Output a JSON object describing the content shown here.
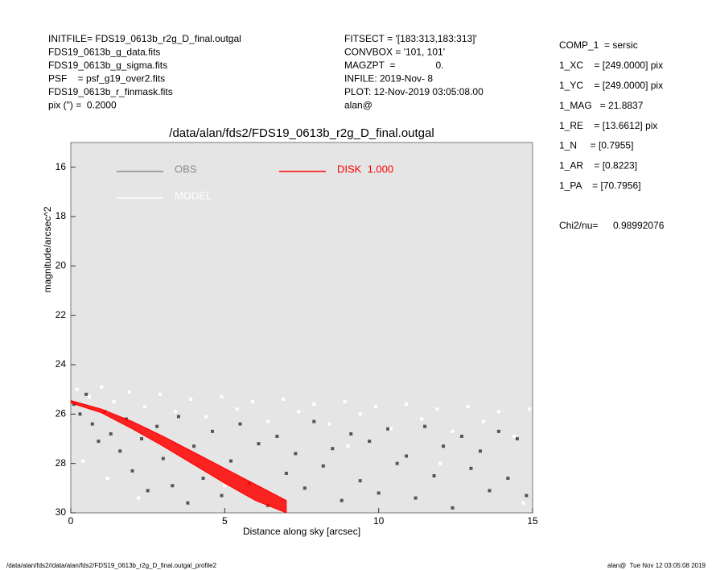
{
  "header": {
    "left": [
      "INITFILE= FDS19_0613b_r2g_D_final.outgal",
      "FDS19_0613b_g_data.fits",
      "FDS19_0613b_g_sigma.fits",
      "PSF    = psf_g19_over2.fits",
      "FDS19_0613b_r_finmask.fits",
      "pix (\") =  0.2000"
    ],
    "middle": [
      "FITSECT = '[183:313,183:313]'",
      "CONVBOX = '101, 101'",
      "MAGZPT  =               0.",
      "INFILE: 2019-Nov- 8",
      "PLOT: 12-Nov-2019 03:05:08.00",
      "alan@"
    ],
    "right": [
      "COMP_1  = sersic",
      "1_XC    = [249.0000] pix",
      "1_YC    = [249.0000] pix",
      "1_MAG   = 21.8837",
      "1_RE    = [13.6612] pix",
      "1_N     = [0.7955]",
      "1_AR    = [0.8223]",
      "1_PA    = [70.7956]"
    ],
    "chi2_label": "Chi2/nu=",
    "chi2_value": "0.98992076"
  },
  "footer": {
    "left": "/data/alan/fds2//data/alan/fds2/FDS19_0613b_r2g_D_final.outgal_profile2",
    "right": "alan@  Tue Nov 12 03:05:08 2019"
  },
  "chart_data": {
    "type": "scatter",
    "title": "/data/alan/fds2/FDS19_0613b_r2g_D_final.outgal",
    "xlabel": "Distance along sky [arcsec]",
    "ylabel": "magnitude/arcsec^2",
    "xlim": [
      0,
      15
    ],
    "ylim": [
      30,
      15
    ],
    "xticks": [
      0,
      5,
      10,
      15
    ],
    "yticks": [
      16,
      18,
      20,
      22,
      24,
      26,
      28,
      30
    ],
    "series": [
      {
        "name": "OBS",
        "color": "#555555",
        "x": [
          0.1,
          0.3,
          0.5,
          0.7,
          0.9,
          1.1,
          1.3,
          1.6,
          1.8,
          2.0,
          2.3,
          2.5,
          2.8,
          3.0,
          3.3,
          3.5,
          3.8,
          4.0,
          4.3,
          4.6,
          4.9,
          5.2,
          5.5,
          5.8,
          6.1,
          6.4,
          6.7,
          7.0,
          7.3,
          7.6,
          7.9,
          8.2,
          8.5,
          8.8,
          9.1,
          9.4,
          9.7,
          10.0,
          10.3,
          10.6,
          10.9,
          11.2,
          11.5,
          11.8,
          12.1,
          12.4,
          12.7,
          13.0,
          13.3,
          13.6,
          13.9,
          14.2,
          14.5,
          14.8
        ],
        "values": [
          25.6,
          26.0,
          25.2,
          26.4,
          27.1,
          25.9,
          26.8,
          27.5,
          26.2,
          28.3,
          27.0,
          29.1,
          26.5,
          27.8,
          28.9,
          26.1,
          29.6,
          27.3,
          28.6,
          26.7,
          29.3,
          27.9,
          26.4,
          28.8,
          27.2,
          29.7,
          26.9,
          28.4,
          27.6,
          29.0,
          26.3,
          28.1,
          27.4,
          29.5,
          26.8,
          28.7,
          27.1,
          29.2,
          26.6,
          28.0,
          27.7,
          29.4,
          26.5,
          28.5,
          27.3,
          29.8,
          26.9,
          28.2,
          27.5,
          29.1,
          26.7,
          28.6,
          27.0,
          29.3
        ]
      },
      {
        "name": "MODEL",
        "color": "#ffffff",
        "x": [
          0.2,
          0.6,
          1.0,
          1.4,
          1.9,
          2.4,
          2.9,
          3.4,
          3.9,
          4.4,
          4.9,
          5.4,
          5.9,
          6.4,
          6.9,
          7.4,
          7.9,
          8.4,
          8.9,
          9.4,
          9.9,
          10.4,
          10.9,
          11.4,
          11.9,
          12.4,
          12.9,
          13.4,
          13.9,
          14.4,
          14.9,
          0.4,
          1.2,
          2.2,
          5.0,
          9.0,
          12.0,
          14.7
        ],
        "values": [
          25.0,
          25.3,
          24.9,
          25.5,
          25.1,
          25.7,
          25.2,
          25.9,
          25.4,
          26.1,
          25.3,
          25.8,
          25.5,
          26.3,
          25.4,
          25.9,
          25.6,
          26.4,
          25.5,
          26.0,
          25.7,
          26.6,
          25.6,
          26.2,
          25.8,
          26.7,
          25.7,
          26.3,
          25.9,
          26.9,
          25.8,
          27.9,
          28.6,
          29.4,
          28.9,
          27.3,
          28.0,
          29.6
        ]
      },
      {
        "name": "DISK  1.000",
        "color": "#ff0000",
        "x": [
          0,
          1,
          2,
          3,
          4,
          5,
          6,
          7
        ],
        "values": [
          25.45,
          25.8,
          26.3,
          26.9,
          27.55,
          28.2,
          28.85,
          29.5
        ],
        "lower": [
          25.55,
          25.95,
          26.6,
          27.3,
          28.05,
          28.8,
          29.5,
          30.0
        ]
      }
    ]
  }
}
